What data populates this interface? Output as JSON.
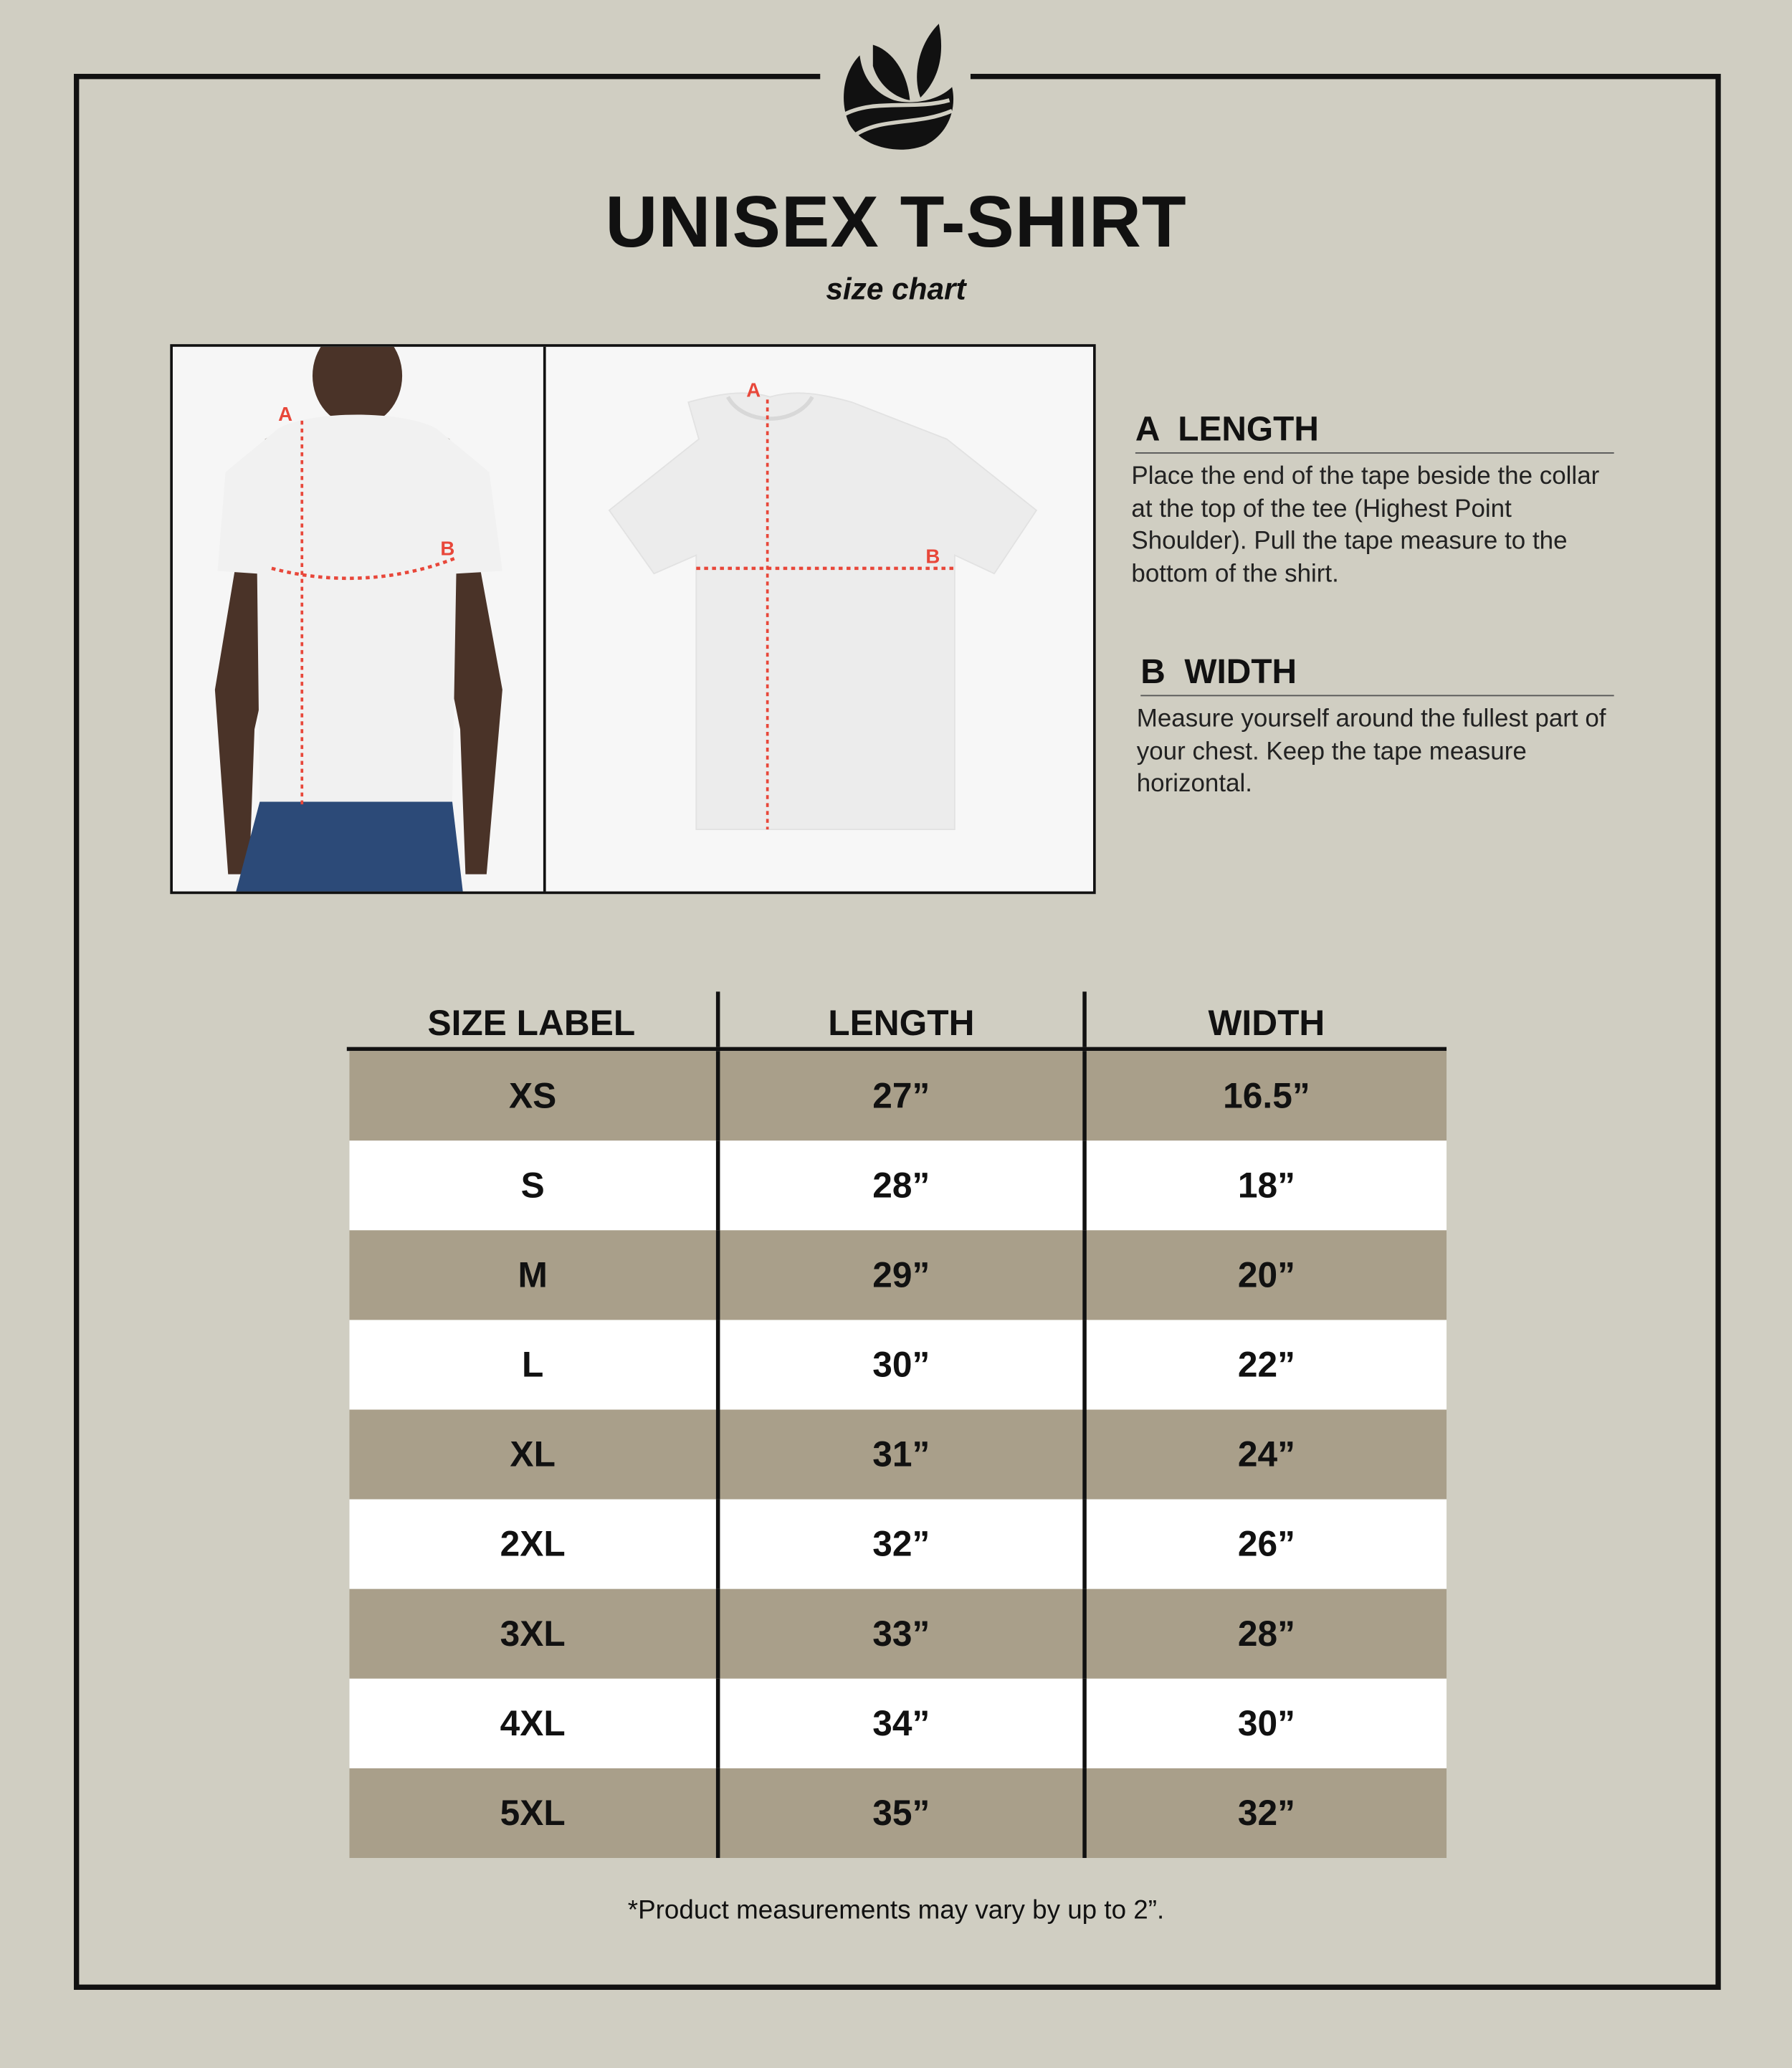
{
  "header": {
    "title": "UNISEX T-SHIRT",
    "subtitle": "size chart",
    "logo_icon": "leaf-logo-icon"
  },
  "diagram": {
    "marker_a": "A",
    "marker_b": "B",
    "marker_color": "#e8473a"
  },
  "measurements": [
    {
      "letter": "A",
      "heading": "A  LENGTH",
      "text": "Place the end of the tape beside the collar at the top of the tee (Highest Point Shoulder). Pull the tape measure to the bottom of the shirt."
    },
    {
      "letter": "B",
      "heading": "B  WIDTH",
      "text": "Measure yourself around the fullest part of your chest. Keep the tape measure horizontal."
    }
  ],
  "table": {
    "headers": [
      "SIZE LABEL",
      "LENGTH",
      "WIDTH"
    ],
    "rows": [
      [
        "XS",
        "27”",
        "16.5”"
      ],
      [
        "S",
        "28”",
        "18”"
      ],
      [
        "M",
        "29”",
        "20”"
      ],
      [
        "L",
        "30”",
        "22”"
      ],
      [
        "XL",
        "31”",
        "24”"
      ],
      [
        "2XL",
        "32”",
        "26”"
      ],
      [
        "3XL",
        "33”",
        "28”"
      ],
      [
        "4XL",
        "34”",
        "30”"
      ],
      [
        "5XL",
        "35”",
        "32”"
      ]
    ],
    "row_colors": [
      "#a99f8a",
      "#ffffff"
    ]
  },
  "footnote": "*Product measurements may vary by up to 2”."
}
